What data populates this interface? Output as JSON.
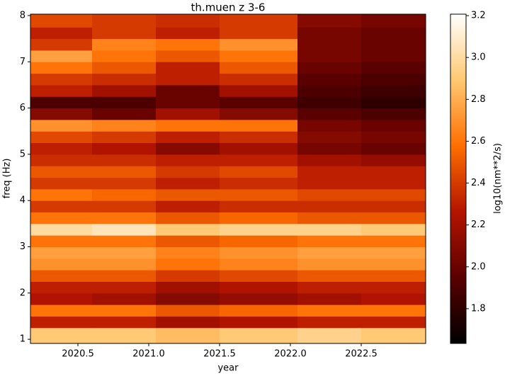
{
  "chart_data": {
    "type": "heatmap",
    "title": "th.muen z 3-6",
    "xlabel": "year",
    "ylabel": "freq (Hz)",
    "colorbar_label": "log10(nm**2/s)",
    "xlim": [
      2020.165,
      2022.955
    ],
    "xticks": [
      2020.5,
      {
        "value": 2021,
        "label": "2021.0"
      },
      2021.5,
      {
        "value": 2022,
        "label": "2022.0"
      },
      2022.5
    ],
    "ylim": [
      0.91,
      8.03
    ],
    "yticks": [
      1,
      2,
      3,
      4,
      5,
      6,
      7,
      8
    ],
    "zlim": [
      1.634,
      3.207
    ],
    "zticks": [
      1.8,
      {
        "value": 2,
        "label": "2.0"
      },
      2.2,
      2.4,
      2.6,
      2.8,
      {
        "value": 3,
        "label": "3.0"
      },
      3.2
    ],
    "colorscale": [
      "#000000",
      "#5a0000",
      "#b41400",
      "#ff6e00",
      "#ffc872",
      "#ffffff"
    ],
    "x_edges": [
      2020.165,
      2020.6,
      2021.05,
      2021.5,
      2022.05,
      2022.5,
      2022.955
    ],
    "y_edges": [
      0.91,
      1.25,
      1.5,
      1.75,
      2.0,
      2.25,
      2.5,
      2.75,
      3.0,
      3.25,
      3.5,
      3.75,
      4.0,
      4.25,
      4.5,
      4.75,
      5.0,
      5.25,
      5.5,
      5.75,
      6.0,
      6.25,
      6.5,
      6.75,
      7.0,
      7.25,
      7.5,
      7.75,
      8.03
    ],
    "z": [
      [
        2.9,
        2.9,
        2.85,
        2.9,
        2.95,
        2.9
      ],
      [
        2.3,
        2.3,
        2.2,
        2.25,
        2.3,
        2.3
      ],
      [
        2.6,
        2.6,
        2.5,
        2.55,
        2.6,
        2.6
      ],
      [
        2.25,
        2.2,
        2.1,
        2.15,
        2.2,
        2.25
      ],
      [
        2.3,
        2.3,
        2.2,
        2.25,
        2.3,
        2.3
      ],
      [
        2.5,
        2.5,
        2.4,
        2.45,
        2.5,
        2.5
      ],
      [
        2.7,
        2.7,
        2.6,
        2.65,
        2.7,
        2.7
      ],
      [
        2.75,
        2.75,
        2.65,
        2.7,
        2.75,
        2.75
      ],
      [
        2.6,
        2.6,
        2.5,
        2.55,
        2.6,
        2.6
      ],
      [
        3.0,
        3.05,
        2.9,
        2.95,
        2.95,
        2.9
      ],
      [
        2.6,
        2.6,
        2.5,
        2.55,
        2.5,
        2.5
      ],
      [
        2.4,
        2.4,
        2.3,
        2.35,
        2.35,
        2.35
      ],
      [
        2.6,
        2.55,
        2.5,
        2.5,
        2.45,
        2.45
      ],
      [
        2.4,
        2.4,
        2.3,
        2.35,
        2.3,
        2.3
      ],
      [
        2.5,
        2.5,
        2.4,
        2.45,
        2.3,
        2.3
      ],
      [
        2.35,
        2.35,
        2.3,
        2.3,
        2.2,
        2.15
      ],
      [
        2.3,
        2.25,
        2.1,
        2.2,
        2.05,
        2.0
      ],
      [
        2.45,
        2.4,
        2.3,
        2.35,
        2.1,
        2.05
      ],
      [
        2.7,
        2.65,
        2.6,
        2.6,
        2.05,
        2.0
      ],
      [
        2.1,
        2.0,
        2.2,
        2.1,
        1.95,
        1.9
      ],
      [
        1.9,
        1.9,
        2.0,
        1.95,
        1.85,
        1.8
      ],
      [
        2.3,
        2.2,
        2.0,
        2.2,
        1.9,
        1.85
      ],
      [
        2.4,
        2.35,
        2.3,
        2.35,
        1.95,
        1.9
      ],
      [
        2.6,
        2.5,
        2.3,
        2.5,
        2.0,
        1.95
      ],
      [
        2.75,
        2.6,
        2.5,
        2.6,
        2.05,
        2.0
      ],
      [
        2.4,
        2.65,
        2.6,
        2.7,
        2.05,
        2.0
      ],
      [
        2.3,
        2.4,
        2.3,
        2.4,
        2.05,
        2.0
      ],
      [
        2.45,
        2.4,
        2.35,
        2.4,
        2.1,
        2.05
      ]
    ]
  }
}
